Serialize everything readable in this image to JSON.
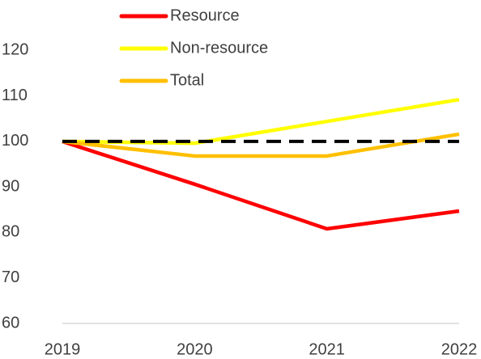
{
  "chart_data": {
    "type": "line",
    "categories": [
      "2019",
      "2020",
      "2021",
      "2022"
    ],
    "series": [
      {
        "name": "Resource",
        "color": "#ff0000",
        "values": [
          100,
          90.6,
          80.8,
          84.7
        ]
      },
      {
        "name": "Non-resource",
        "color": "#ffff00",
        "values": [
          100,
          99.6,
          104.4,
          109.2
        ]
      },
      {
        "name": "Total",
        "color": "#ffc000",
        "values": [
          100,
          96.8,
          96.8,
          101.6
        ]
      }
    ],
    "reference_line": 100,
    "reference_color": "#000000",
    "ylim": [
      60,
      120
    ],
    "yticks": [
      60,
      70,
      80,
      90,
      100,
      110,
      120
    ],
    "grid": false
  }
}
